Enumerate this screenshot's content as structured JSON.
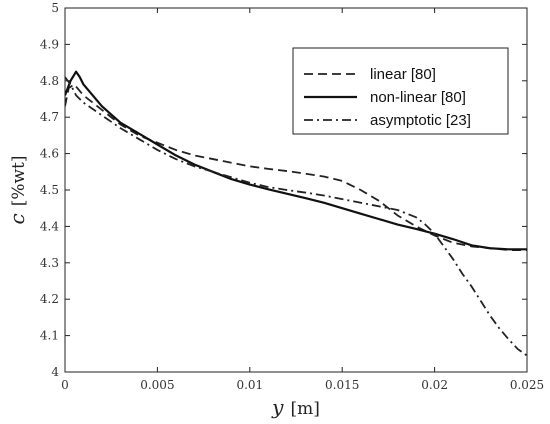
{
  "chart_data": {
    "type": "line",
    "title": "",
    "xlabel": {
      "symbol": "y",
      "unit": "[m]"
    },
    "ylabel": {
      "symbol": "c",
      "unit": "[%wt]"
    },
    "xlim": [
      0,
      0.025
    ],
    "ylim": [
      4,
      5
    ],
    "xticks": [
      {
        "value": 0,
        "label": "0"
      },
      {
        "value": 0.005,
        "label": "0.005"
      },
      {
        "value": 0.01,
        "label": "0.01"
      },
      {
        "value": 0.015,
        "label": "0.015"
      },
      {
        "value": 0.02,
        "label": "0.02"
      },
      {
        "value": 0.025,
        "label": "0.025"
      }
    ],
    "yticks": [
      {
        "value": 4,
        "label": "4"
      },
      {
        "value": 4.1,
        "label": "4.1"
      },
      {
        "value": 4.2,
        "label": "4.2"
      },
      {
        "value": 4.3,
        "label": "4.3"
      },
      {
        "value": 4.4,
        "label": "4.4"
      },
      {
        "value": 4.5,
        "label": "4.5"
      },
      {
        "value": 4.6,
        "label": "4.6"
      },
      {
        "value": 4.7,
        "label": "4.7"
      },
      {
        "value": 4.8,
        "label": "4.8"
      },
      {
        "value": 4.9,
        "label": "4.9"
      },
      {
        "value": 5,
        "label": "5"
      }
    ],
    "grid": false,
    "legend_position": "top-right",
    "series": [
      {
        "name": "linear [80]",
        "style": "dashed",
        "color": "#222222",
        "points": [
          [
            0,
            4.73
          ],
          [
            0.0002,
            4.78
          ],
          [
            0.0005,
            4.79
          ],
          [
            0.001,
            4.76
          ],
          [
            0.002,
            4.72
          ],
          [
            0.003,
            4.68
          ],
          [
            0.004,
            4.65
          ],
          [
            0.005,
            4.63
          ],
          [
            0.006,
            4.61
          ],
          [
            0.007,
            4.595
          ],
          [
            0.008,
            4.585
          ],
          [
            0.009,
            4.575
          ],
          [
            0.01,
            4.565
          ],
          [
            0.011,
            4.558
          ],
          [
            0.012,
            4.552
          ],
          [
            0.013,
            4.545
          ],
          [
            0.014,
            4.537
          ],
          [
            0.015,
            4.525
          ],
          [
            0.016,
            4.5
          ],
          [
            0.017,
            4.47
          ],
          [
            0.018,
            4.43
          ],
          [
            0.019,
            4.4
          ],
          [
            0.02,
            4.375
          ],
          [
            0.021,
            4.355
          ],
          [
            0.022,
            4.345
          ],
          [
            0.023,
            4.34
          ],
          [
            0.024,
            4.335
          ],
          [
            0.025,
            4.335
          ]
        ]
      },
      {
        "name": "non-linear [80]",
        "style": "solid",
        "color": "#111111",
        "points": [
          [
            0,
            4.76
          ],
          [
            0.0003,
            4.8
          ],
          [
            0.0006,
            4.825
          ],
          [
            0.0008,
            4.81
          ],
          [
            0.001,
            4.79
          ],
          [
            0.002,
            4.73
          ],
          [
            0.003,
            4.685
          ],
          [
            0.004,
            4.655
          ],
          [
            0.005,
            4.625
          ],
          [
            0.006,
            4.595
          ],
          [
            0.007,
            4.57
          ],
          [
            0.008,
            4.55
          ],
          [
            0.009,
            4.53
          ],
          [
            0.01,
            4.515
          ],
          [
            0.011,
            4.502
          ],
          [
            0.012,
            4.49
          ],
          [
            0.013,
            4.478
          ],
          [
            0.014,
            4.465
          ],
          [
            0.015,
            4.45
          ],
          [
            0.016,
            4.435
          ],
          [
            0.017,
            4.42
          ],
          [
            0.018,
            4.405
          ],
          [
            0.019,
            4.393
          ],
          [
            0.02,
            4.38
          ],
          [
            0.021,
            4.365
          ],
          [
            0.022,
            4.348
          ],
          [
            0.023,
            4.34
          ],
          [
            0.024,
            4.337
          ],
          [
            0.025,
            4.337
          ]
        ]
      },
      {
        "name": "asymptotic [23]",
        "style": "dashdot",
        "color": "#222222",
        "points": [
          [
            0,
            4.81
          ],
          [
            0.0003,
            4.79
          ],
          [
            0.0006,
            4.76
          ],
          [
            0.001,
            4.74
          ],
          [
            0.002,
            4.705
          ],
          [
            0.003,
            4.67
          ],
          [
            0.004,
            4.64
          ],
          [
            0.005,
            4.61
          ],
          [
            0.006,
            4.585
          ],
          [
            0.007,
            4.565
          ],
          [
            0.008,
            4.55
          ],
          [
            0.009,
            4.535
          ],
          [
            0.01,
            4.52
          ],
          [
            0.011,
            4.508
          ],
          [
            0.012,
            4.5
          ],
          [
            0.013,
            4.493
          ],
          [
            0.014,
            4.485
          ],
          [
            0.015,
            4.475
          ],
          [
            0.016,
            4.465
          ],
          [
            0.017,
            4.455
          ],
          [
            0.018,
            4.445
          ],
          [
            0.019,
            4.425
          ],
          [
            0.0195,
            4.405
          ],
          [
            0.02,
            4.38
          ],
          [
            0.0205,
            4.345
          ],
          [
            0.021,
            4.31
          ],
          [
            0.0215,
            4.27
          ],
          [
            0.022,
            4.235
          ],
          [
            0.0225,
            4.195
          ],
          [
            0.023,
            4.155
          ],
          [
            0.0235,
            4.12
          ],
          [
            0.024,
            4.09
          ],
          [
            0.0245,
            4.063
          ],
          [
            0.025,
            4.045
          ]
        ]
      }
    ]
  }
}
